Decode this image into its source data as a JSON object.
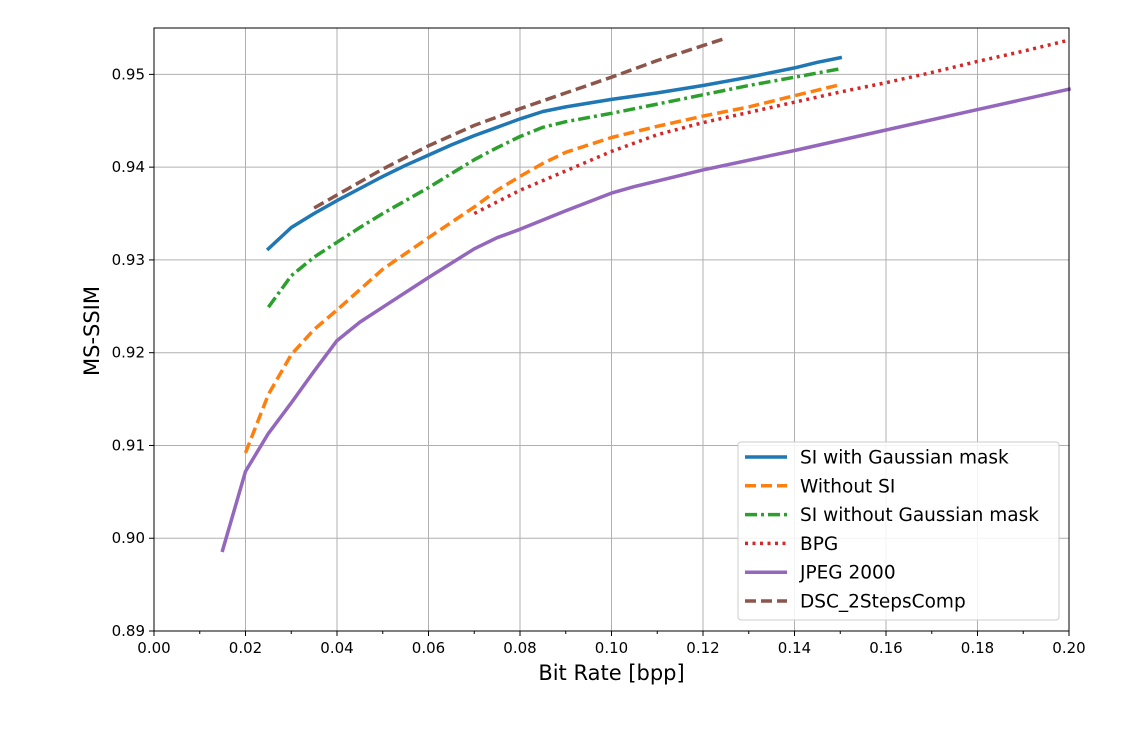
{
  "chart_data": {
    "type": "line",
    "title": "",
    "xlabel": "Bit Rate [bpp]",
    "ylabel": "MS-SSIM",
    "xlim": [
      0.0,
      0.2
    ],
    "ylim": [
      0.89,
      0.955
    ],
    "x_ticks": [
      "0.00",
      "0.02",
      "0.04",
      "0.06",
      "0.08",
      "0.10",
      "0.12",
      "0.14",
      "0.16",
      "0.18",
      "0.20"
    ],
    "y_ticks": [
      "0.89",
      "0.90",
      "0.91",
      "0.92",
      "0.93",
      "0.94",
      "0.95"
    ],
    "grid": true,
    "legend_position": "lower-right",
    "series": [
      {
        "name": "SI with Gaussian mask",
        "color": "#1f77b4",
        "style": "solid",
        "x": [
          0.025,
          0.03,
          0.035,
          0.04,
          0.045,
          0.05,
          0.055,
          0.06,
          0.065,
          0.07,
          0.075,
          0.08,
          0.085,
          0.09,
          0.095,
          0.1,
          0.11,
          0.12,
          0.13,
          0.14,
          0.145,
          0.15
        ],
        "y": [
          0.9312,
          0.9335,
          0.935,
          0.9364,
          0.9377,
          0.939,
          0.9402,
          0.9413,
          0.9424,
          0.9434,
          0.9443,
          0.9452,
          0.946,
          0.9465,
          0.9469,
          0.9473,
          0.948,
          0.9488,
          0.9497,
          0.9507,
          0.9513,
          0.9518
        ]
      },
      {
        "name": "Without SI",
        "color": "#ff7f0e",
        "style": "dashed",
        "x": [
          0.02,
          0.025,
          0.03,
          0.035,
          0.04,
          0.045,
          0.05,
          0.06,
          0.07,
          0.075,
          0.08,
          0.085,
          0.09,
          0.1,
          0.11,
          0.12,
          0.13,
          0.14,
          0.15
        ],
        "y": [
          0.9092,
          0.9155,
          0.9198,
          0.9225,
          0.9246,
          0.9268,
          0.929,
          0.9324,
          0.9357,
          0.9375,
          0.939,
          0.9404,
          0.9416,
          0.9432,
          0.9444,
          0.9455,
          0.9465,
          0.9477,
          0.9489
        ]
      },
      {
        "name": "SI without Gaussian mask",
        "color": "#2ca02c",
        "style": "dashdot",
        "x": [
          0.025,
          0.03,
          0.035,
          0.04,
          0.045,
          0.05,
          0.055,
          0.06,
          0.065,
          0.07,
          0.075,
          0.08,
          0.085,
          0.09,
          0.1,
          0.11,
          0.12,
          0.13,
          0.14,
          0.15
        ],
        "y": [
          0.9249,
          0.9283,
          0.9303,
          0.9319,
          0.9335,
          0.935,
          0.9364,
          0.9378,
          0.9393,
          0.9408,
          0.9421,
          0.9433,
          0.9443,
          0.9449,
          0.9458,
          0.9468,
          0.9478,
          0.9488,
          0.9497,
          0.9506
        ]
      },
      {
        "name": "BPG",
        "color": "#d62728",
        "style": "dotted",
        "x": [
          0.07,
          0.08,
          0.09,
          0.1,
          0.11,
          0.12,
          0.13,
          0.14,
          0.15,
          0.16,
          0.17,
          0.18,
          0.19,
          0.2
        ],
        "y": [
          0.935,
          0.9375,
          0.9396,
          0.9417,
          0.9435,
          0.9448,
          0.9459,
          0.947,
          0.9481,
          0.9491,
          0.9502,
          0.9514,
          0.9525,
          0.9537
        ]
      },
      {
        "name": "JPEG 2000",
        "color": "#9467bd",
        "style": "solid",
        "x": [
          0.015,
          0.02,
          0.025,
          0.03,
          0.035,
          0.04,
          0.045,
          0.05,
          0.06,
          0.07,
          0.075,
          0.08,
          0.09,
          0.1,
          0.105,
          0.12,
          0.14,
          0.16,
          0.18,
          0.2
        ],
        "y": [
          0.8987,
          0.9072,
          0.9113,
          0.9146,
          0.918,
          0.9213,
          0.9233,
          0.9249,
          0.9281,
          0.9312,
          0.9324,
          0.9333,
          0.9353,
          0.9372,
          0.9379,
          0.9397,
          0.9418,
          0.944,
          0.9462,
          0.9484
        ]
      },
      {
        "name": "DSC_2StepsComp",
        "color": "#8c564b",
        "style": "dashed",
        "x": [
          0.035,
          0.04,
          0.05,
          0.06,
          0.07,
          0.08,
          0.09,
          0.1,
          0.11,
          0.12,
          0.125
        ],
        "y": [
          0.9356,
          0.937,
          0.9398,
          0.9423,
          0.9445,
          0.9463,
          0.948,
          0.9497,
          0.9515,
          0.9531,
          0.9539
        ]
      }
    ]
  }
}
